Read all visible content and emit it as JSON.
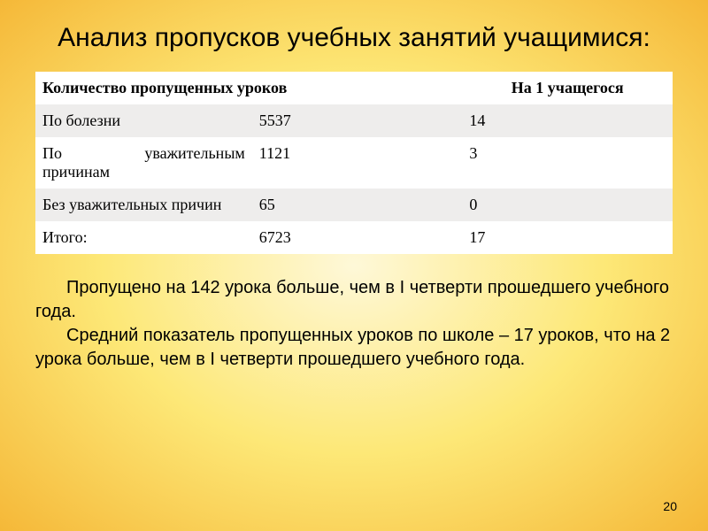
{
  "title": "Анализ пропусков учебных занятий учащимися:",
  "table": {
    "headers": {
      "col1": "Количество пропущенных уроков",
      "col2": "",
      "col3": "На 1 учащегося"
    },
    "rows": [
      {
        "label": "По болезни",
        "value": "5537",
        "perStudent": "14"
      },
      {
        "label_part1": "По",
        "label_part2": "уважительным",
        "label_line2": "причинам",
        "value": "1121",
        "perStudent": "3"
      },
      {
        "label": "Без уважительных причин",
        "value": "65",
        "perStudent": "0"
      },
      {
        "label": "Итого:",
        "value": "6723",
        "perStudent": "17"
      }
    ]
  },
  "paragraph": {
    "line1": "Пропущено на 142 урока больше, чем в  I четверти прошедшего учебного года.",
    "line2": "Средний показатель пропущенных уроков по школе – 17 уроков, что на 2 урока больше, чем в  I четверти прошедшего учебного года."
  },
  "pageNumber": "20",
  "colors": {
    "background_inner": "#fef8d8",
    "background_mid": "#fde877",
    "background_outer": "#f5b838",
    "row_alt": "#eeedec",
    "row_base": "#ffffff"
  }
}
